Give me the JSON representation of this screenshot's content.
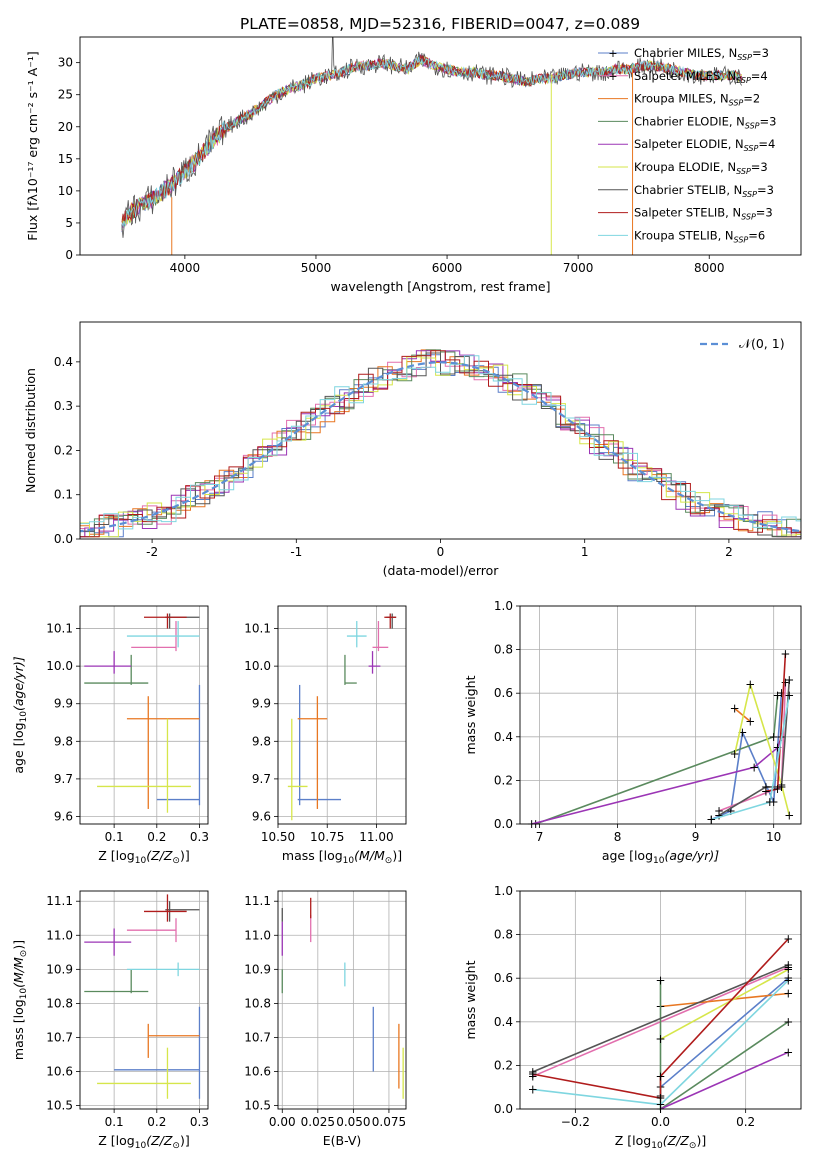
{
  "figure": {
    "title": "PLATE=0858, MJD=52316, FIBERID=0047, z=0.089"
  },
  "chart_data": [
    {
      "id": "spectrum",
      "type": "line",
      "xlabel": "wavelength [Angstrom, rest frame]",
      "ylabel": "Flux [fλ10⁻¹⁷ erg cm⁻² s⁻¹ A⁻¹]",
      "xlim": [
        3200,
        8700
      ],
      "ylim": [
        0,
        34
      ],
      "xticks": [
        4000,
        5000,
        6000,
        7000,
        8000
      ],
      "yticks": [
        0,
        5,
        10,
        15,
        20,
        25,
        30
      ],
      "grid": false,
      "legend_position": "right",
      "data_x": [
        3520,
        3600,
        3700,
        3800,
        3900,
        4000,
        4100,
        4200,
        4300,
        4400,
        4500,
        4600,
        4700,
        4800,
        4900,
        5000,
        5100,
        5200,
        5300,
        5400,
        5500,
        5600,
        5700,
        5800,
        5900,
        6000,
        6100,
        6200,
        6300,
        6400,
        6500,
        6600,
        6700,
        6800,
        6900,
        7000,
        7100,
        7200,
        7300,
        7400,
        7500,
        7600,
        7700,
        7800,
        7900,
        8000,
        8100,
        8200,
        8250
      ],
      "data_y": [
        5,
        7,
        8,
        9.5,
        11,
        13,
        15,
        17.5,
        19.5,
        21,
        22,
        23.5,
        25,
        26,
        26.5,
        27.5,
        28,
        28.5,
        29.5,
        29.5,
        30,
        29.5,
        29,
        30.5,
        29.5,
        29,
        28.5,
        28.5,
        28,
        28,
        27.5,
        27,
        27.5,
        27.5,
        28,
        28.5,
        28.5,
        28.5,
        29,
        29,
        29.5,
        29.5,
        29,
        28.5,
        28,
        28,
        28,
        28,
        27.5
      ],
      "series": [
        {
          "name": "Chabrier MILES, N<sub>SSP</sub>=3",
          "label_text": "Chabrier MILES, N",
          "label_sub": "SSP",
          "label_tail": "=3",
          "color": "#5b7fc9",
          "marker": "+"
        },
        {
          "name": "Salpeter MILES, N<sub>SSP</sub>=4",
          "label_text": "Salpeter MILES, N",
          "label_sub": "SSP",
          "label_tail": "=4",
          "color": "#e26fae",
          "marker": "+"
        },
        {
          "name": "Kroupa MILES, N<sub>SSP</sub>=2",
          "label_text": "Kroupa MILES, N",
          "label_sub": "SSP",
          "label_tail": "=2",
          "color": "#e87722",
          "marker": ""
        },
        {
          "name": "Chabrier ELODIE, N<sub>SSP</sub>=3",
          "label_text": "Chabrier ELODIE, N",
          "label_sub": "SSP",
          "label_tail": "=3",
          "color": "#5a8a5e",
          "marker": ""
        },
        {
          "name": "Salpeter ELODIE, N<sub>SSP</sub>=4",
          "label_text": "Salpeter ELODIE, N",
          "label_sub": "SSP",
          "label_tail": "=4",
          "color": "#9b35b5",
          "marker": ""
        },
        {
          "name": "Kroupa ELODIE, N<sub>SSP</sub>=3",
          "label_text": "Kroupa ELODIE, N",
          "label_sub": "SSP",
          "label_tail": "=3",
          "color": "#d6e64a",
          "marker": ""
        },
        {
          "name": "Chabrier STELIB, N<sub>SSP</sub>=3",
          "label_text": "Chabrier STELIB, N",
          "label_sub": "SSP",
          "label_tail": "=3",
          "color": "#555555",
          "marker": ""
        },
        {
          "name": "Salpeter STELIB, N<sub>SSP</sub>=3",
          "label_text": "Salpeter STELIB, N",
          "label_sub": "SSP",
          "label_tail": "=3",
          "color": "#b01c1c",
          "marker": ""
        },
        {
          "name": "Kroupa STELIB, N<sub>SSP</sub>=6",
          "label_text": "Kroupa STELIB, N",
          "label_sub": "SSP",
          "label_tail": "=6",
          "color": "#7fd6e0",
          "marker": ""
        }
      ]
    },
    {
      "id": "residuals",
      "type": "line",
      "xlabel": "(data-model)/error",
      "ylabel": "Normed distribution",
      "xlim": [
        -2.5,
        2.5
      ],
      "ylim": [
        0,
        0.49
      ],
      "xticks": [
        -2,
        -1,
        0,
        1,
        2
      ],
      "yticks": [
        0.0,
        0.1,
        0.2,
        0.3,
        0.4
      ],
      "grid": true,
      "legend_position": "top-right",
      "legend": "𝒩(0, 1)",
      "legend_color": "#5b8fd6"
    },
    {
      "id": "z-age",
      "type": "scatter",
      "xlabel_main": "Z [log",
      "xlabel_sub": "10",
      "xlabel_tail": "(Z/Z",
      "xlabel_sun": "⊙",
      "xlabel_end": ")]",
      "ylabel_main": "age  [log",
      "ylabel_sub": "10",
      "ylabel_tail": "(age/yr)]",
      "xlim": [
        0.02,
        0.32
      ],
      "ylim": [
        9.58,
        10.16
      ],
      "xticks": [
        0.1,
        0.2,
        0.3
      ],
      "yticks": [
        9.6,
        9.7,
        9.8,
        9.9,
        10.0,
        10.1
      ],
      "points": [
        {
          "x": 0.3,
          "y": 9.645,
          "xerr": [
            0.2,
            0.3
          ],
          "yerr": [
            9.63,
            9.95
          ],
          "color": "#5b7fc9"
        },
        {
          "x": 0.245,
          "y": 10.05,
          "xerr": [
            0.14,
            0.245
          ],
          "yerr": [
            10.04,
            10.12
          ],
          "color": "#e26fae"
        },
        {
          "x": 0.18,
          "y": 9.86,
          "xerr": [
            0.13,
            0.3
          ],
          "yerr": [
            9.62,
            9.92
          ],
          "color": "#e87722"
        },
        {
          "x": 0.14,
          "y": 9.955,
          "xerr": [
            0.03,
            0.18
          ],
          "yerr": [
            9.95,
            10.03
          ],
          "color": "#5a8a5e"
        },
        {
          "x": 0.1,
          "y": 10.0,
          "xerr": [
            0.03,
            0.14
          ],
          "yerr": [
            9.98,
            10.04
          ],
          "color": "#9b35b5"
        },
        {
          "x": 0.225,
          "y": 9.68,
          "xerr": [
            0.06,
            0.28
          ],
          "yerr": [
            9.61,
            9.86
          ],
          "color": "#d6e64a"
        },
        {
          "x": 0.23,
          "y": 10.13,
          "xerr": [
            0.22,
            0.3
          ],
          "yerr": [
            10.1,
            10.14
          ],
          "color": "#555555"
        },
        {
          "x": 0.225,
          "y": 10.13,
          "xerr": [
            0.17,
            0.27
          ],
          "yerr": [
            10.1,
            10.14
          ],
          "color": "#b01c1c"
        },
        {
          "x": 0.25,
          "y": 10.08,
          "xerr": [
            0.13,
            0.3
          ],
          "yerr": [
            10.05,
            10.12
          ],
          "color": "#7fd6e0"
        }
      ]
    },
    {
      "id": "mass-age",
      "type": "scatter",
      "xlabel_main": "mass [log",
      "xlabel_sub": "10",
      "xlabel_tail": "(M/M",
      "xlabel_sun": "⊙",
      "xlabel_end": ")]",
      "xlim": [
        10.5,
        11.15
      ],
      "ylim": [
        9.58,
        10.16
      ],
      "xticks": [
        10.5,
        10.75,
        11.0
      ],
      "xtick_labels": [
        "10.50",
        "10.75",
        "11.00"
      ],
      "yticks": [
        9.6,
        9.7,
        9.8,
        9.9,
        10.0,
        10.1
      ],
      "points": [
        {
          "x": 10.61,
          "y": 9.645,
          "xerr": [
            10.6,
            10.82
          ],
          "yerr": [
            9.63,
            9.95
          ],
          "color": "#5b7fc9"
        },
        {
          "x": 11.01,
          "y": 10.05,
          "xerr": [
            10.98,
            11.06
          ],
          "yerr": [
            10.04,
            10.12
          ],
          "color": "#e26fae"
        },
        {
          "x": 10.7,
          "y": 9.86,
          "xerr": [
            10.6,
            10.75
          ],
          "yerr": [
            9.62,
            9.92
          ],
          "color": "#e87722"
        },
        {
          "x": 10.84,
          "y": 9.955,
          "xerr": [
            10.84,
            10.9
          ],
          "yerr": [
            9.95,
            10.03
          ],
          "color": "#5a8a5e"
        },
        {
          "x": 10.98,
          "y": 10.0,
          "xerr": [
            10.96,
            11.02
          ],
          "yerr": [
            9.98,
            10.04
          ],
          "color": "#9b35b5"
        },
        {
          "x": 10.57,
          "y": 9.68,
          "xerr": [
            10.55,
            10.65
          ],
          "yerr": [
            9.59,
            9.86
          ],
          "color": "#d6e64a"
        },
        {
          "x": 11.08,
          "y": 10.13,
          "xerr": [
            11.05,
            11.1
          ],
          "yerr": [
            10.1,
            10.14
          ],
          "color": "#555555"
        },
        {
          "x": 11.07,
          "y": 10.13,
          "xerr": [
            11.04,
            11.1
          ],
          "yerr": [
            10.1,
            10.14
          ],
          "color": "#b01c1c"
        },
        {
          "x": 10.9,
          "y": 10.08,
          "xerr": [
            10.85,
            10.95
          ],
          "yerr": [
            10.05,
            10.12
          ],
          "color": "#7fd6e0"
        }
      ]
    },
    {
      "id": "age-weight",
      "type": "line",
      "xlabel_main": "age  [log",
      "xlabel_sub": "10",
      "xlabel_tail": "(age/yr)]",
      "ylabel": "mass weight",
      "xlim": [
        6.75,
        10.35
      ],
      "ylim": [
        0,
        1.0
      ],
      "xticks": [
        7,
        8,
        9,
        10
      ],
      "yticks": [
        0.0,
        0.2,
        0.4,
        0.6,
        0.8,
        1.0
      ],
      "grid": true,
      "series": [
        {
          "color": "#5b7fc9",
          "x": [
            9.2,
            9.45,
            9.6,
            10.0,
            10.1
          ],
          "y": [
            0.02,
            0.06,
            0.42,
            0.1,
            0.6
          ]
        },
        {
          "color": "#e26fae",
          "x": [
            9.3,
            10.1,
            10.15
          ],
          "y": [
            0.06,
            0.17,
            0.65
          ]
        },
        {
          "color": "#e87722",
          "x": [
            9.5,
            9.7
          ],
          "y": [
            0.53,
            0.47
          ]
        },
        {
          "color": "#5a8a5e",
          "x": [
            6.95,
            10.0,
            10.05
          ],
          "y": [
            0.0,
            0.4,
            0.59
          ]
        },
        {
          "color": "#9b35b5",
          "x": [
            6.9,
            9.75,
            10.05,
            10.1
          ],
          "y": [
            0.0,
            0.26,
            0.35,
            0.4
          ]
        },
        {
          "color": "#d6e64a",
          "x": [
            9.5,
            9.7,
            10.1,
            10.2
          ],
          "y": [
            0.32,
            0.64,
            0.18,
            0.04
          ]
        },
        {
          "color": "#555555",
          "x": [
            9.3,
            9.9,
            10.1,
            10.2
          ],
          "y": [
            0.04,
            0.17,
            0.17,
            0.66
          ]
        },
        {
          "color": "#b01c1c",
          "x": [
            9.9,
            10.05,
            10.15
          ],
          "y": [
            0.15,
            0.16,
            0.78
          ]
        },
        {
          "color": "#7fd6e0",
          "x": [
            9.2,
            9.95,
            10.2
          ],
          "y": [
            0.02,
            0.1,
            0.59
          ]
        }
      ]
    },
    {
      "id": "z-mass",
      "type": "scatter",
      "xlabel_main": "Z [log",
      "xlabel_sub": "10",
      "xlabel_tail": "(Z/Z",
      "xlabel_sun": "⊙",
      "xlabel_end": ")]",
      "ylabel_main": "mass [log",
      "ylabel_sub": "10",
      "ylabel_tail": "(M/M",
      "ylabel_sun": "⊙",
      "ylabel_end": ")]",
      "xlim": [
        0.02,
        0.32
      ],
      "ylim": [
        10.49,
        11.13
      ],
      "xticks": [
        0.1,
        0.2,
        0.3
      ],
      "yticks": [
        10.5,
        10.6,
        10.7,
        10.8,
        10.9,
        11.0,
        11.1
      ],
      "points": [
        {
          "x": 0.3,
          "y": 10.605,
          "xerr": [
            0.1,
            0.3
          ],
          "yerr": [
            10.52,
            10.79
          ],
          "color": "#5b7fc9"
        },
        {
          "x": 0.245,
          "y": 11.015,
          "xerr": [
            0.13,
            0.245
          ],
          "yerr": [
            10.98,
            11.05
          ],
          "color": "#e26fae"
        },
        {
          "x": 0.18,
          "y": 10.705,
          "xerr": [
            0.18,
            0.3
          ],
          "yerr": [
            10.64,
            10.74
          ],
          "color": "#e87722"
        },
        {
          "x": 0.14,
          "y": 10.835,
          "xerr": [
            0.03,
            0.18
          ],
          "yerr": [
            10.83,
            10.9
          ],
          "color": "#5a8a5e"
        },
        {
          "x": 0.1,
          "y": 10.98,
          "xerr": [
            0.03,
            0.14
          ],
          "yerr": [
            10.94,
            11.02
          ],
          "color": "#9b35b5"
        },
        {
          "x": 0.225,
          "y": 10.565,
          "xerr": [
            0.06,
            0.28
          ],
          "yerr": [
            10.52,
            10.67
          ],
          "color": "#d6e64a"
        },
        {
          "x": 0.23,
          "y": 11.075,
          "xerr": [
            0.22,
            0.3
          ],
          "yerr": [
            11.04,
            11.1
          ],
          "color": "#555555"
        },
        {
          "x": 0.225,
          "y": 11.07,
          "xerr": [
            0.17,
            0.27
          ],
          "yerr": [
            11.04,
            11.12
          ],
          "color": "#b01c1c"
        },
        {
          "x": 0.25,
          "y": 10.9,
          "xerr": [
            0.13,
            0.3
          ],
          "yerr": [
            10.88,
            10.92
          ],
          "color": "#7fd6e0"
        }
      ]
    },
    {
      "id": "ebv-mass",
      "type": "scatter",
      "xlabel": "E(B-V)",
      "xlim": [
        -0.003,
        0.087
      ],
      "ylim": [
        10.49,
        11.13
      ],
      "xticks": [
        0.0,
        0.025,
        0.05,
        0.075
      ],
      "xtick_labels": [
        "0.00",
        "0.025",
        "0.050",
        "0.075"
      ],
      "yticks": [
        10.5,
        10.6,
        10.7,
        10.8,
        10.9,
        11.0,
        11.1
      ],
      "points": [
        {
          "x": 0.064,
          "y": 10.6,
          "yerr": [
            10.6,
            10.79
          ],
          "color": "#5b7fc9"
        },
        {
          "x": 0.02,
          "y": 11.02,
          "yerr": [
            10.98,
            11.06
          ],
          "color": "#e26fae"
        },
        {
          "x": 0.082,
          "y": 10.63,
          "yerr": [
            10.55,
            10.74
          ],
          "color": "#e87722"
        },
        {
          "x": 0.0,
          "y": 10.84,
          "yerr": [
            10.83,
            10.9
          ],
          "color": "#5a8a5e"
        },
        {
          "x": 0.0,
          "y": 10.98,
          "yerr": [
            10.94,
            11.04
          ],
          "color": "#9b35b5"
        },
        {
          "x": 0.085,
          "y": 10.6,
          "yerr": [
            10.52,
            10.67
          ],
          "color": "#d6e64a"
        },
        {
          "x": 0.0,
          "y": 11.07,
          "yerr": [
            11.04,
            11.08
          ],
          "color": "#555555"
        },
        {
          "x": 0.02,
          "y": 11.08,
          "yerr": [
            11.05,
            11.11
          ],
          "color": "#b01c1c"
        },
        {
          "x": 0.044,
          "y": 10.9,
          "yerr": [
            10.85,
            10.92
          ],
          "color": "#7fd6e0"
        }
      ]
    },
    {
      "id": "z-weight",
      "type": "line",
      "xlabel_main": "Z [log",
      "xlabel_sub": "10",
      "xlabel_tail": "(Z/Z",
      "xlabel_sun": "⊙",
      "xlabel_end": ")]",
      "ylabel": "mass weight",
      "xlim": [
        -0.33,
        0.33
      ],
      "ylim": [
        0,
        1.0
      ],
      "xticks": [
        -0.2,
        0.0,
        0.2
      ],
      "xtick_labels": [
        "−0.2",
        "0.0",
        "0.2"
      ],
      "yticks": [
        0.0,
        0.2,
        0.4,
        0.6,
        0.8,
        1.0
      ],
      "grid": true,
      "series": [
        {
          "color": "#5b7fc9",
          "x": [
            0.0,
            0.0,
            0.3
          ],
          "y": [
            0.06,
            0.1,
            0.6
          ]
        },
        {
          "color": "#e26fae",
          "x": [
            -0.3,
            0.3
          ],
          "y": [
            0.15,
            0.65
          ]
        },
        {
          "color": "#e87722",
          "x": [
            0.0,
            0.3
          ],
          "y": [
            0.47,
            0.53
          ]
        },
        {
          "color": "#5a8a5e",
          "x": [
            0.0,
            0.0,
            0.3
          ],
          "y": [
            0.59,
            0.0,
            0.4
          ]
        },
        {
          "color": "#9b35b5",
          "x": [
            0.0,
            0.3
          ],
          "y": [
            0.0,
            0.26
          ]
        },
        {
          "color": "#d6e64a",
          "x": [
            0.0,
            0.0,
            0.3
          ],
          "y": [
            0.32,
            0.32,
            0.64
          ]
        },
        {
          "color": "#555555",
          "x": [
            -0.3,
            0.3
          ],
          "y": [
            0.17,
            0.66
          ]
        },
        {
          "color": "#b01c1c",
          "x": [
            -0.3,
            0.0,
            0.0,
            0.3
          ],
          "y": [
            0.16,
            0.05,
            0.15,
            0.78
          ]
        },
        {
          "color": "#7fd6e0",
          "x": [
            -0.3,
            0.0,
            0.3
          ],
          "y": [
            0.09,
            0.02,
            0.59
          ]
        }
      ]
    }
  ]
}
